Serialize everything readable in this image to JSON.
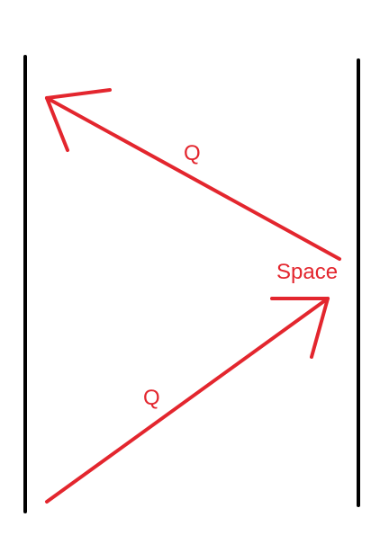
{
  "colors": {
    "background": "#ffffff",
    "wall": "#000000",
    "arrow": "#e3262e"
  },
  "labels": {
    "upper_arrow": "Q",
    "turn_point": "Space",
    "lower_arrow": "Q"
  }
}
